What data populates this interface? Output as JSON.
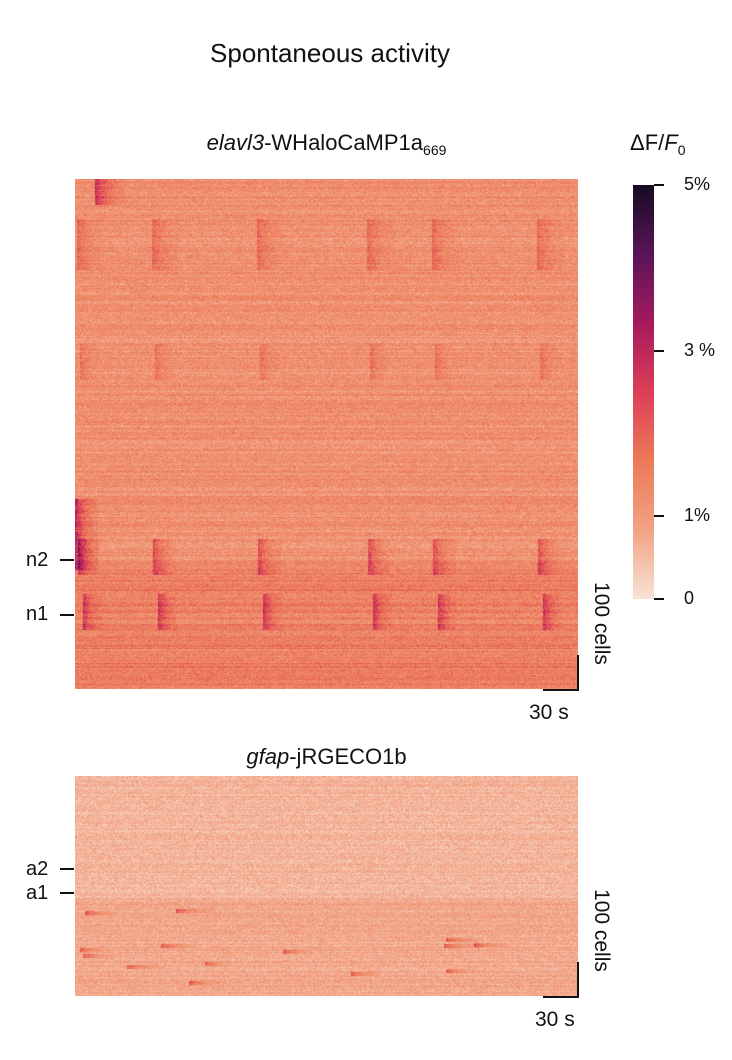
{
  "figure": {
    "title": "Spontaneous activity"
  },
  "colorbar": {
    "title_delta_f": "ΔF",
    "title_slash": "/",
    "title_f": "F",
    "title_sub": "0",
    "colors": [
      "#f8e3d6",
      "#f2a283",
      "#ec7a58",
      "#dd3e57",
      "#a5195d",
      "#5a1459",
      "#150b23"
    ],
    "ticks": [
      {
        "value": 0,
        "label": "0"
      },
      {
        "value": 1,
        "label": "1%"
      },
      {
        "value": 3,
        "label": "3 %"
      },
      {
        "value": 5,
        "label": "5%"
      }
    ]
  },
  "chart_data": [
    {
      "type": "heatmap",
      "title_italic": "elavl3",
      "title_main": "-WHaloCaMP1a",
      "title_sub": "669",
      "xlabel": "",
      "ylabel": "",
      "value_range": [
        0,
        5
      ],
      "row_markers": [
        {
          "label": "n2"
        },
        {
          "label": "n1"
        }
      ],
      "scale_bar_y": "100 cells",
      "scale_bar_x": "30 s"
    },
    {
      "type": "heatmap",
      "title_italic": "gfap",
      "title_main": "-jRGECO1b",
      "title_sub": "",
      "xlabel": "",
      "ylabel": "",
      "value_range": [
        0,
        5
      ],
      "row_markers": [
        {
          "label": "a2"
        },
        {
          "label": "a1"
        }
      ],
      "scale_bar_y": "100 cells",
      "scale_bar_x": "30 s"
    }
  ]
}
